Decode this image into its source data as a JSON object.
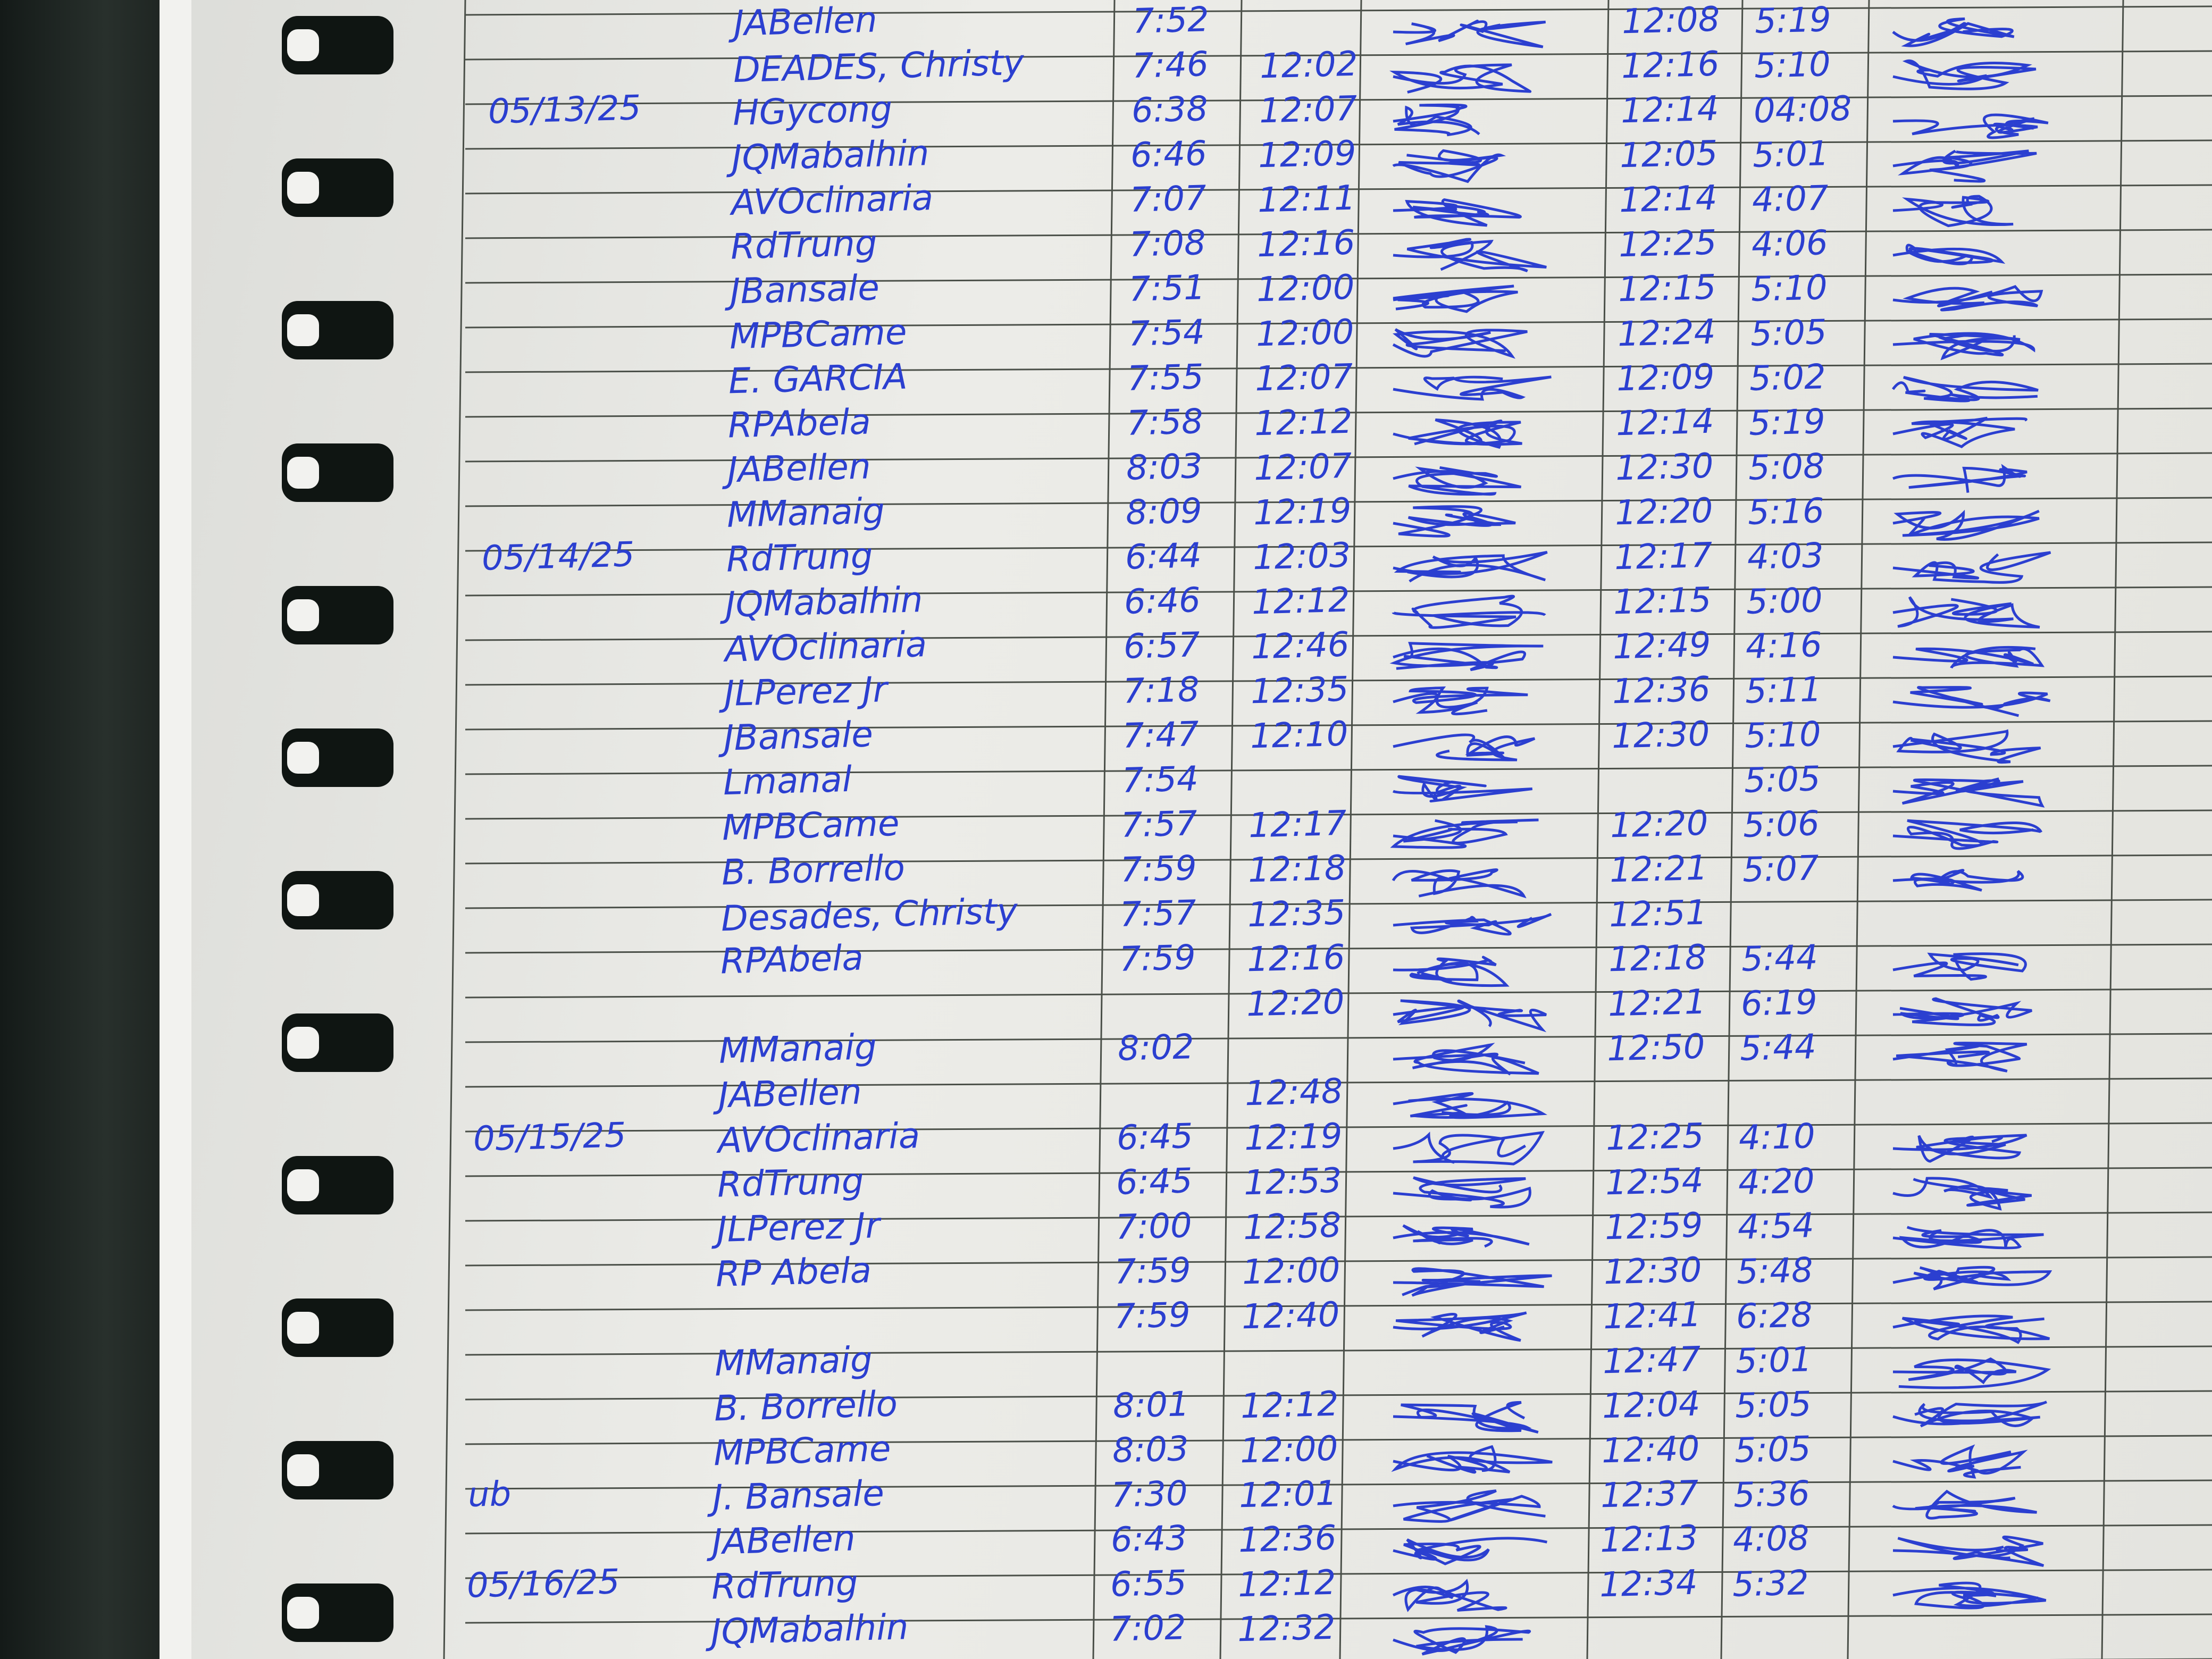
{
  "rows": [
    {
      "name": "JABellen",
      "am_in": "7:52",
      "pm_in": "12:08",
      "pm_out": "5:19"
    },
    {
      "name": "DEADES, Christy",
      "am_in": "7:46",
      "am_out": "12:02",
      "pm_in": "12:16",
      "pm_out": "5:10"
    },
    {
      "date": "05/13/25",
      "name": "HGycong",
      "am_in": "6:38",
      "am_out": "12:07",
      "pm_in": "12:14",
      "pm_out": "04:08"
    },
    {
      "name": "JQMabalhin",
      "am_in": "6:46",
      "am_out": "12:09",
      "pm_in": "12:05",
      "pm_out": "5:01"
    },
    {
      "name": "AVOclinaria",
      "am_in": "7:07",
      "am_out": "12:11",
      "pm_in": "12:14",
      "pm_out": "4:07"
    },
    {
      "name": "RdTrung",
      "am_in": "7:08",
      "am_out": "12:16",
      "pm_in": "12:25",
      "pm_out": "4:06"
    },
    {
      "name": "JBansale",
      "am_in": "7:51",
      "am_out": "12:00",
      "pm_in": "12:15",
      "pm_out": "5:10"
    },
    {
      "name": "MPBCame",
      "am_in": "7:54",
      "am_out": "12:00",
      "pm_in": "12:24",
      "pm_out": "5:05"
    },
    {
      "name": "E. GARCIA",
      "am_in": "7:55",
      "am_out": "12:07",
      "pm_in": "12:09",
      "pm_out": "5:02"
    },
    {
      "name": "RPAbela",
      "am_in": "7:58",
      "am_out": "12:12",
      "pm_in": "12:14",
      "pm_out": "5:19"
    },
    {
      "name": "JABellen",
      "am_in": "8:03",
      "am_out": "12:07",
      "pm_in": "12:30",
      "pm_out": "5:08"
    },
    {
      "name": "MManaig",
      "am_in": "8:09",
      "am_out": "12:19",
      "pm_in": "12:20",
      "pm_out": "5:16"
    },
    {
      "date": "05/14/25",
      "name": "RdTrung",
      "am_in": "6:44",
      "am_out": "12:03",
      "pm_in": "12:17",
      "pm_out": "4:03"
    },
    {
      "name": "JQMabalhin",
      "am_in": "6:46",
      "am_out": "12:12",
      "pm_in": "12:15",
      "pm_out": "5:00"
    },
    {
      "name": "AVOclinaria",
      "am_in": "6:57",
      "am_out": "12:46",
      "pm_in": "12:49",
      "pm_out": "4:16"
    },
    {
      "name": "JLPerez Jr",
      "am_in": "7:18",
      "am_out": "12:35",
      "pm_in": "12:36",
      "pm_out": "5:11"
    },
    {
      "name": "JBansale",
      "am_in": "7:47",
      "am_out": "12:10",
      "pm_in": "12:30",
      "pm_out": "5:10"
    },
    {
      "name": "Lmanal",
      "am_in": "7:54",
      "pm_out": "5:05"
    },
    {
      "name": "MPBCame",
      "am_in": "7:57",
      "am_out": "12:17",
      "pm_in": "12:20",
      "pm_out": "5:06"
    },
    {
      "name": "B. Borrello",
      "am_in": "7:59",
      "am_out": "12:18",
      "pm_in": "12:21",
      "pm_out": "5:07"
    },
    {
      "name": "Desades, Christy",
      "am_in": "7:57",
      "am_out": "12:35",
      "pm_in": "12:51"
    },
    {
      "name": "RPAbela",
      "am_in": "7:59",
      "am_out": "12:16",
      "pm_in": "12:18",
      "pm_out": "5:44"
    },
    {
      "am_out": "12:20",
      "pm_in": "12:21",
      "pm_out": "6:19"
    },
    {
      "name": "MManaig",
      "am_in": "8:02",
      "pm_in": "12:50",
      "pm_out": "5:44"
    },
    {
      "name": "JABellen",
      "am_out": "12:48"
    },
    {
      "date": "05/15/25",
      "name": "AVOclinaria",
      "am_in": "6:45",
      "am_out": "12:19",
      "pm_in": "12:25",
      "pm_out": "4:10"
    },
    {
      "name": "RdTrung",
      "am_in": "6:45",
      "am_out": "12:53",
      "pm_in": "12:54",
      "pm_out": "4:20"
    },
    {
      "name": "JLPerez Jr",
      "am_in": "7:00",
      "am_out": "12:58",
      "pm_in": "12:59",
      "pm_out": "4:54"
    },
    {
      "name": "RP Abela",
      "am_in": "7:59",
      "am_out": "12:00",
      "pm_in": "12:30",
      "pm_out": "5:48"
    },
    {
      "am_in": "7:59",
      "am_out": "12:40",
      "pm_in": "12:41",
      "pm_out": "6:28"
    },
    {
      "name": "MManaig",
      "pm_in": "12:47",
      "pm_out": "5:01"
    },
    {
      "name": "B. Borrello",
      "am_in": "8:01",
      "am_out": "12:12",
      "pm_in": "12:04",
      "pm_out": "5:05"
    },
    {
      "name": "MPBCame",
      "am_in": "8:03",
      "am_out": "12:00",
      "pm_in": "12:40",
      "pm_out": "5:05"
    },
    {
      "date": "ub",
      "name": "J. Bansale",
      "am_in": "7:30",
      "am_out": "12:01",
      "pm_in": "12:37",
      "pm_out": "5:36"
    },
    {
      "name": "JABellen",
      "am_in": "6:43",
      "am_out": "12:36",
      "pm_in": "12:13",
      "pm_out": "4:08"
    },
    {
      "date": "05/16/25",
      "name": "RdTrung",
      "am_in": "6:55",
      "am_out": "12:12",
      "pm_in": "12:34",
      "pm_out": "5:32"
    },
    {
      "name": "JQMabalhin",
      "am_in": "7:02",
      "am_out": "12:32"
    }
  ]
}
